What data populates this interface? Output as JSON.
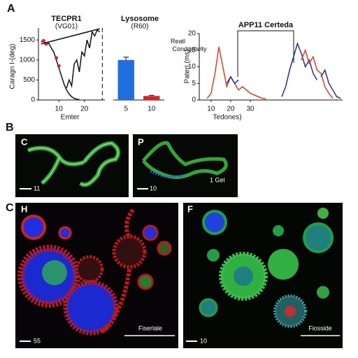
{
  "chart_data": [
    {
      "type": "line",
      "title": "TECPR1",
      "subtitle": "(VG01)",
      "y_label": "Caragn I-(deg)",
      "x_label": "Emter",
      "xlim": [
        2,
        28
      ],
      "xticks": [
        10,
        20
      ],
      "ylim": [
        0,
        1800
      ],
      "yticks": [
        0,
        500,
        1000,
        1500
      ],
      "vline": 27,
      "series": [
        {
          "color": "#111111",
          "x": [
            3,
            4,
            5,
            6,
            7,
            8,
            9,
            10,
            11,
            12,
            13,
            14,
            15,
            16,
            17,
            18
          ],
          "values": [
            1450,
            1500,
            1380,
            1420,
            1300,
            1200,
            1000,
            800,
            600,
            400,
            250,
            150,
            80,
            40,
            20,
            10
          ]
        },
        {
          "color": "#e02020",
          "marker": true,
          "x": [
            4,
            5,
            9,
            10
          ],
          "values": [
            1480,
            1400,
            1050,
            850
          ]
        },
        {
          "color": "#111111",
          "x": [
            13,
            14,
            15,
            16,
            17,
            18,
            19,
            20,
            21,
            22,
            23,
            24,
            25,
            26
          ],
          "values": [
            300,
            500,
            350,
            900,
            1000,
            700,
            1200,
            1100,
            1500,
            1300,
            1700,
            1600,
            1750,
            1700
          ]
        },
        {
          "color": "#111111",
          "x": [
            3,
            26
          ],
          "values": [
            1400,
            1780
          ]
        }
      ]
    },
    {
      "type": "bar",
      "title": "Lysosome",
      "subtitle": "(R60)",
      "legend": "Reatl Conductivity",
      "categories": [
        "5",
        "10"
      ],
      "values": [
        1000,
        100
      ],
      "errors": [
        70,
        15
      ],
      "colors": [
        "#1f6fe0",
        "#e02020"
      ],
      "ylim": [
        0,
        1800
      ]
    },
    {
      "type": "line",
      "title": "APP11 Certeda",
      "y_label": "Pateri (ms)",
      "x_label": "Tedones)",
      "xlim": [
        4,
        77
      ],
      "xticks": [
        10,
        20,
        30
      ],
      "ylim": [
        0,
        20
      ],
      "yticks": [
        0,
        5,
        10,
        15,
        20
      ],
      "series": [
        {
          "color": "#e04020",
          "x": [
            8,
            10,
            12,
            14,
            16,
            18,
            20,
            22,
            24,
            26,
            28,
            30,
            32,
            34,
            36,
            38
          ],
          "values": [
            0.5,
            2,
            8,
            16,
            10,
            4,
            7,
            5,
            3,
            4,
            3,
            2,
            1.5,
            1,
            0.5,
            0.3
          ]
        },
        {
          "color": "#2030a0",
          "x": [
            18,
            20,
            22,
            24
          ],
          "values": [
            5,
            7,
            5,
            6
          ]
        },
        {
          "color": "#2030a0",
          "x": [
            46,
            48,
            50,
            52,
            54,
            56,
            58,
            60,
            62,
            64
          ],
          "values": [
            1,
            4,
            9,
            13,
            17,
            14,
            10,
            12,
            8,
            6
          ]
        },
        {
          "color": "#e04020",
          "x": [
            56,
            58,
            60,
            62,
            64,
            66,
            68,
            70,
            72
          ],
          "values": [
            12,
            15,
            11,
            13,
            9,
            8,
            4,
            2,
            0.5
          ]
        },
        {
          "color": "#2030a0",
          "x": [
            66,
            68,
            70,
            72,
            74,
            76
          ],
          "values": [
            7,
            9,
            5,
            3,
            1,
            0.5
          ]
        }
      ]
    }
  ],
  "panels": {
    "labels": [
      "A",
      "B",
      "C"
    ],
    "images": [
      {
        "label": "C",
        "scale": "11"
      },
      {
        "label": "P",
        "scale": "10",
        "note": "1 Gel"
      },
      {
        "label": "H",
        "scale": "55",
        "caption": "Fiserlale"
      },
      {
        "label": "F",
        "scale": "10",
        "caption": "Fiosside"
      }
    ]
  }
}
